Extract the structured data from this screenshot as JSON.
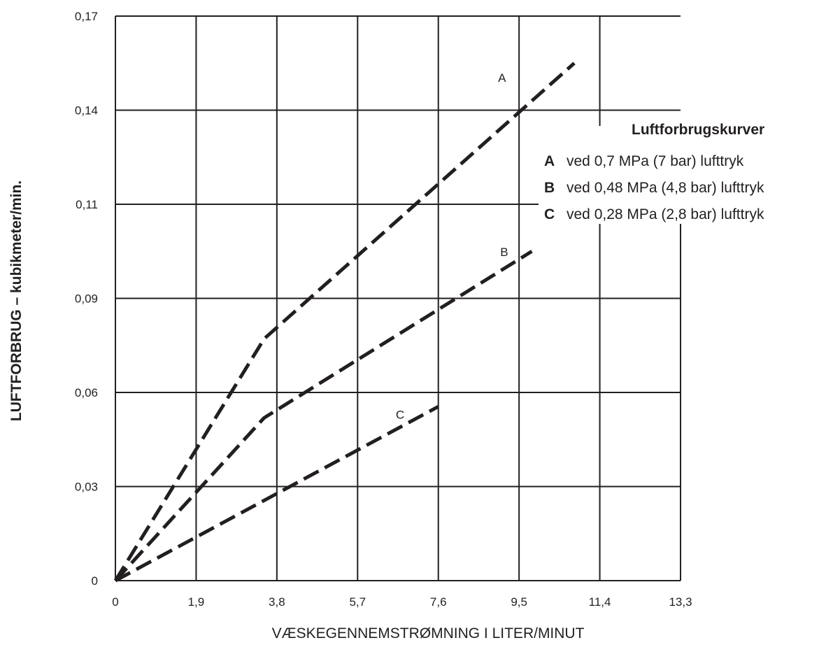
{
  "chart_data": {
    "type": "line",
    "xlabel": "VÆSKEGENNEMSTRØMNING I LITER/MINUT",
    "ylabel": "LUFTFORBRUG – kubikmeter/min.",
    "x_ticks": [
      "0",
      "1,9",
      "3,8",
      "5,7",
      "7,6",
      "9,5",
      "11,4",
      "13,3"
    ],
    "y_ticks": [
      "0",
      "0,03",
      "0,06",
      "0,09",
      "0,11",
      "0,14",
      "0,17"
    ],
    "xlim": [
      0,
      13.3
    ],
    "y_category_levels": 6,
    "grid": true,
    "line_style": "dashed",
    "legend": {
      "title": "Luftforbrugskurver",
      "items": [
        {
          "key": "A",
          "text": "ved 0,7 MPa (7 bar) lufttryk"
        },
        {
          "key": "B",
          "text": "ved 0,48 MPa (4,8 bar) lufttryk"
        },
        {
          "key": "C",
          "text": "ved 0,28 MPa (2,8 bar) lufttryk"
        }
      ]
    },
    "series": [
      {
        "name": "A",
        "x": [
          0,
          3.5,
          10.8
        ],
        "y_level": [
          0,
          2.57,
          5.5
        ]
      },
      {
        "name": "B",
        "x": [
          0,
          3.5,
          9.8
        ],
        "y_level": [
          0,
          1.73,
          3.5
        ]
      },
      {
        "name": "C",
        "x": [
          0,
          7.6
        ],
        "y_level": [
          0,
          1.85
        ]
      }
    ],
    "curve_labels": [
      {
        "text": "A",
        "x": 9.1,
        "y_level": 5.3
      },
      {
        "text": "B",
        "x": 9.15,
        "y_level": 3.45
      },
      {
        "text": "C",
        "x": 6.7,
        "y_level": 1.72
      }
    ]
  }
}
